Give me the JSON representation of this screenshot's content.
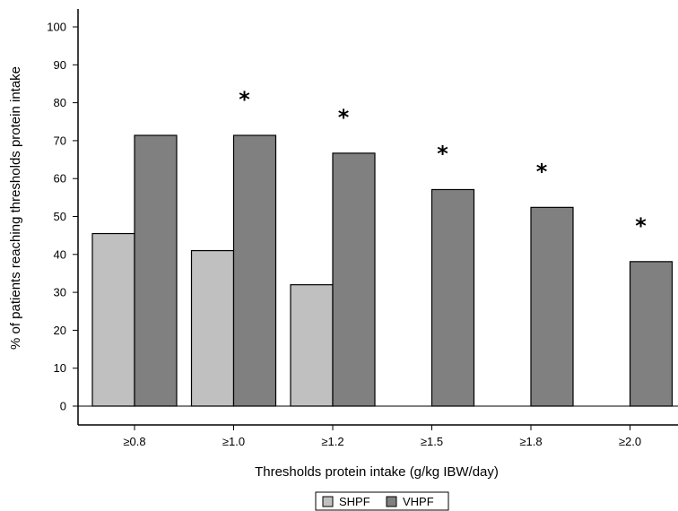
{
  "chart_data": {
    "type": "bar",
    "title": "",
    "xlabel": "Thresholds protein intake (g/kg IBW/day)",
    "ylabel": "% of patients reaching thresholds protein intake",
    "ylim": [
      0,
      100
    ],
    "yticks": [
      "0",
      "10",
      "20",
      "30",
      "40",
      "50",
      "60",
      "70",
      "80",
      "90",
      "100"
    ],
    "categories": [
      "≥0.8",
      "≥1.0",
      "≥1.2",
      "≥1.5",
      "≥1.8",
      "≥2.0"
    ],
    "series": [
      {
        "name": "SHPF",
        "values": [
          45.5,
          41,
          32,
          0,
          0,
          0
        ],
        "color": "#c0c0c0"
      },
      {
        "name": "VHPF",
        "values": [
          71.4,
          71.4,
          66.7,
          57.1,
          52.4,
          38.1
        ],
        "color": "#808080"
      }
    ],
    "significance": [
      "",
      "*",
      "*",
      "*",
      "*",
      "*"
    ],
    "grid": false,
    "legend_position": "bottom"
  }
}
